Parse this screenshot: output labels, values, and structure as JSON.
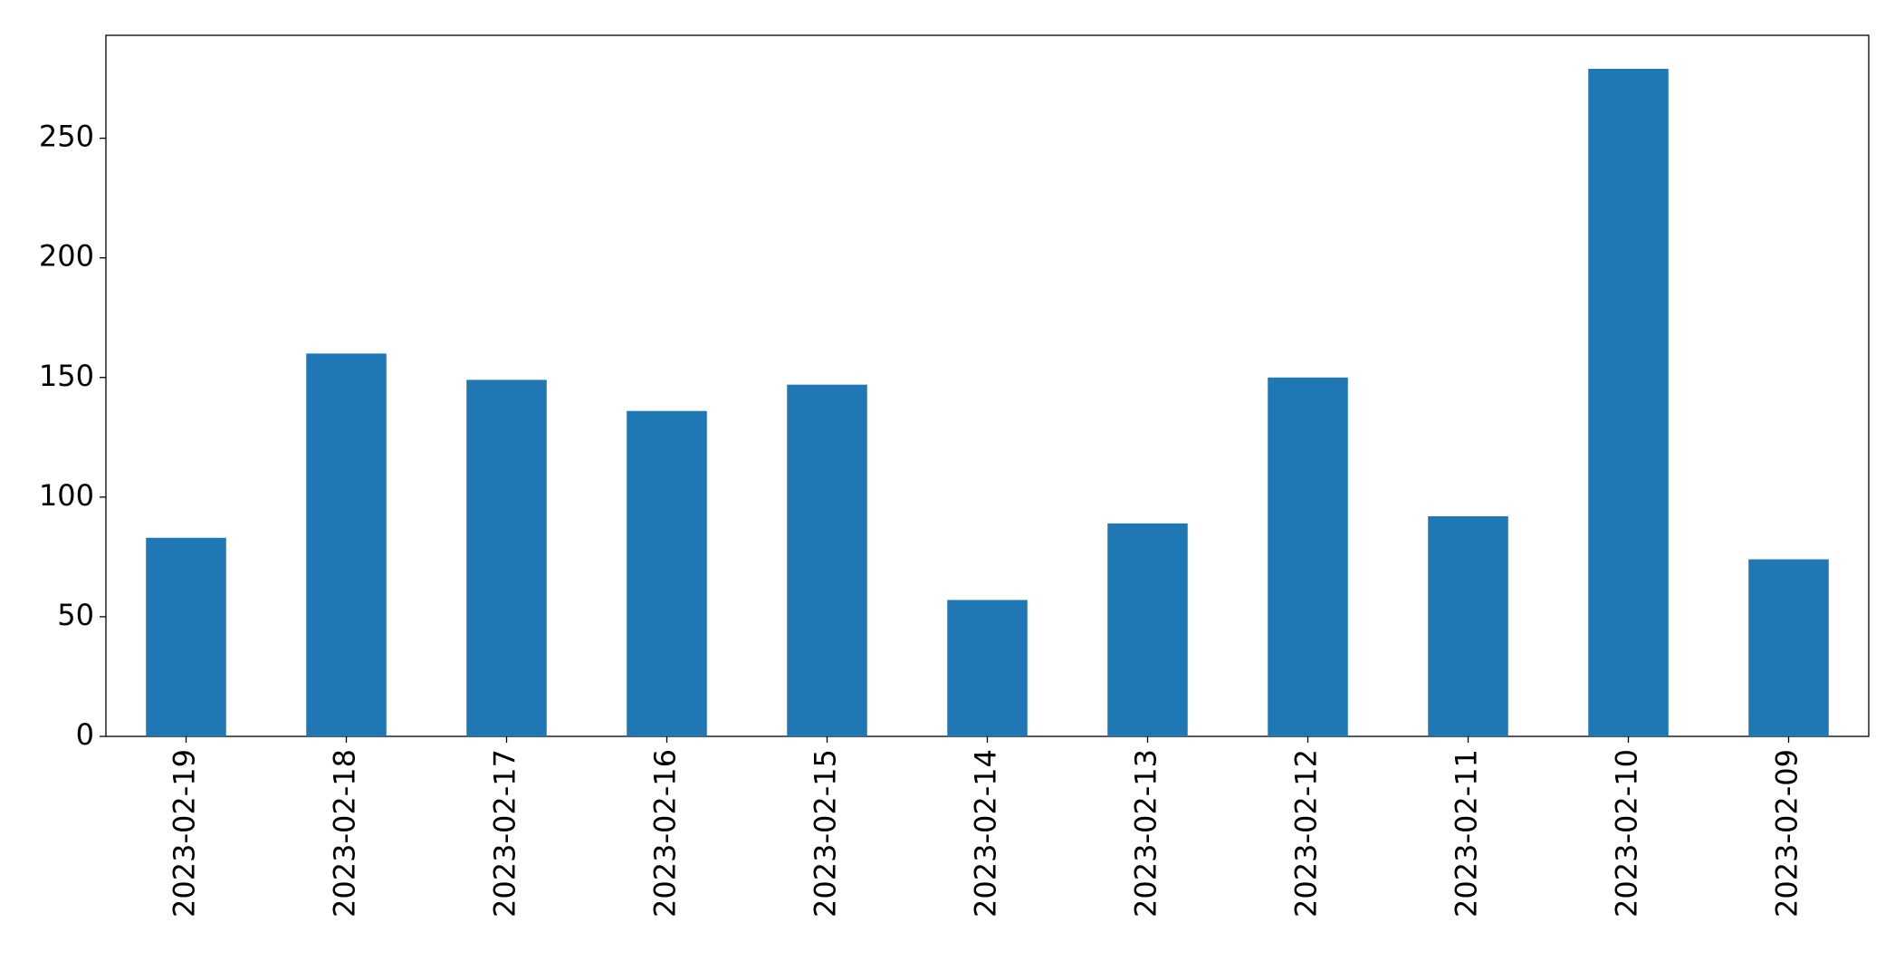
{
  "chart_data": {
    "type": "bar",
    "categories": [
      "2023-02-19",
      "2023-02-18",
      "2023-02-17",
      "2023-02-16",
      "2023-02-15",
      "2023-02-14",
      "2023-02-13",
      "2023-02-12",
      "2023-02-11",
      "2023-02-10",
      "2023-02-09"
    ],
    "values": [
      83,
      160,
      149,
      136,
      147,
      57,
      89,
      150,
      92,
      279,
      74
    ],
    "color": "#1f77b4",
    "ylim": [
      0,
      293
    ],
    "yticks": [
      0,
      50,
      100,
      150,
      200,
      250
    ],
    "grid": false
  }
}
